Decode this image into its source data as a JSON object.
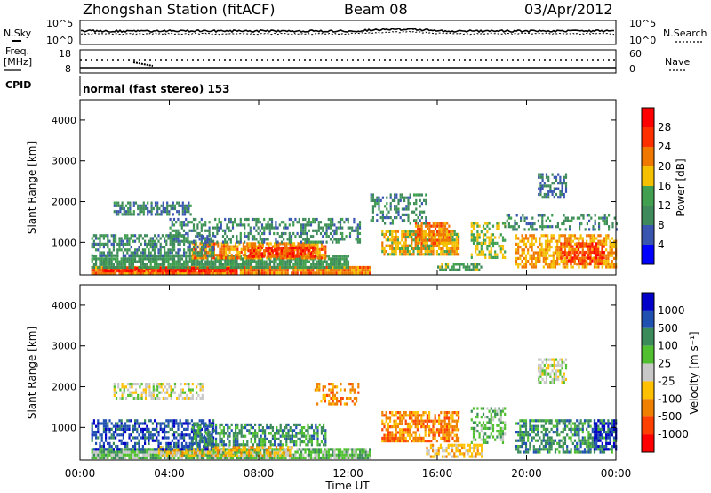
{
  "header": {
    "title": "Zhongshan Station (fitACF)",
    "beam": "Beam 08",
    "date": "03/Apr/2012"
  },
  "noise_panel": {
    "left_label": "N.Sky",
    "left_ticks": [
      "10^5",
      "10^0"
    ],
    "right_ticks": [
      "10^5",
      "10^0"
    ],
    "right_label": "N.Search"
  },
  "freq_panel": {
    "left_label_1": "Freq.",
    "left_label_2": "[MHz]",
    "left_ticks": [
      "18",
      "8"
    ],
    "right_ticks": [
      "60",
      "0"
    ],
    "right_label": "Nave"
  },
  "cpid_panel": {
    "label": "CPID",
    "value": "normal (fast stereo) 153"
  },
  "colors": {
    "power_scale": [
      "#0000ff",
      "#3a55b0",
      "#3e8a5a",
      "#40a050",
      "#f5c000",
      "#f07800",
      "#ff3000",
      "#ff0000"
    ],
    "velocity_scale": [
      "#0000c8",
      "#2050b0",
      "#3a8a5a",
      "#50c030",
      "#c8c8c8",
      "#ffc000",
      "#f08000",
      "#ff4000",
      "#ff0000"
    ]
  },
  "chart_data": [
    {
      "type": "heatmap",
      "name": "power",
      "ylabel": "Slant Range [km]",
      "yticks": [
        "1000",
        "2000",
        "3000",
        "4000"
      ],
      "ylim": [
        200,
        4500
      ],
      "xlim": [
        0,
        24
      ],
      "colorbar_label": "Power [dB]",
      "colorbar_ticks": [
        "4",
        "8",
        "12",
        "16",
        "20",
        "24",
        "28"
      ],
      "colorbar_range": [
        0,
        32
      ],
      "grid": false,
      "blobs": [
        {
          "t0": 0.5,
          "t1": 13.0,
          "r0": 280,
          "r1": 420,
          "value": 22,
          "density": 0.95
        },
        {
          "t0": 1.0,
          "t1": 7.0,
          "r0": 300,
          "r1": 400,
          "value": 28,
          "density": 0.9
        },
        {
          "t0": 0.5,
          "t1": 12.0,
          "r0": 400,
          "r1": 700,
          "value": 12,
          "density": 0.85
        },
        {
          "t0": 5.0,
          "t1": 11.0,
          "r0": 650,
          "r1": 1000,
          "value": 21,
          "density": 0.8
        },
        {
          "t0": 7.5,
          "t1": 10.5,
          "r0": 650,
          "r1": 900,
          "value": 26,
          "density": 0.75
        },
        {
          "t0": 0.5,
          "t1": 6.0,
          "r0": 700,
          "r1": 1200,
          "value": 10,
          "density": 0.6
        },
        {
          "t0": 1.5,
          "t1": 5.0,
          "r0": 1700,
          "r1": 2000,
          "value": 9,
          "density": 0.6
        },
        {
          "t0": 4.0,
          "t1": 12.5,
          "r0": 1000,
          "r1": 1600,
          "value": 10,
          "density": 0.45
        },
        {
          "t0": 13.5,
          "t1": 17.0,
          "r0": 700,
          "r1": 1300,
          "value": 18,
          "density": 0.8
        },
        {
          "t0": 15.0,
          "t1": 16.5,
          "r0": 1000,
          "r1": 1500,
          "value": 22,
          "density": 0.7
        },
        {
          "t0": 13.0,
          "t1": 15.5,
          "r0": 1500,
          "r1": 2200,
          "value": 10,
          "density": 0.4
        },
        {
          "t0": 16.0,
          "t1": 18.0,
          "r0": 300,
          "r1": 500,
          "value": 13,
          "density": 0.7
        },
        {
          "t0": 17.5,
          "t1": 19.0,
          "r0": 600,
          "r1": 1500,
          "value": 16,
          "density": 0.55
        },
        {
          "t0": 19.5,
          "t1": 24.0,
          "r0": 400,
          "r1": 1200,
          "value": 20,
          "density": 0.65
        },
        {
          "t0": 21.5,
          "t1": 23.5,
          "r0": 500,
          "r1": 1000,
          "value": 26,
          "density": 0.6
        },
        {
          "t0": 20.5,
          "t1": 21.8,
          "r0": 2100,
          "r1": 2700,
          "value": 8,
          "density": 0.6
        },
        {
          "t0": 19.0,
          "t1": 24.0,
          "r0": 1300,
          "r1": 1700,
          "value": 10,
          "density": 0.35
        }
      ]
    },
    {
      "type": "heatmap",
      "name": "velocity",
      "ylabel": "Slant Range [km]",
      "yticks": [
        "1000",
        "2000",
        "3000",
        "4000"
      ],
      "ylim": [
        200,
        4500
      ],
      "xlim": [
        0,
        24
      ],
      "xticks": [
        "00:00",
        "04:00",
        "08:00",
        "12:00",
        "16:00",
        "20:00",
        "00:00"
      ],
      "xlabel": "Time UT",
      "colorbar_label": "Velocity [m s⁻¹]",
      "colorbar_ticks": [
        "1000",
        "500",
        "100",
        "25",
        "-25",
        "-100",
        "-500",
        "-1000"
      ],
      "grid": false,
      "blobs": [
        {
          "t0": 0.5,
          "t1": 13.0,
          "r0": 280,
          "r1": 500,
          "value": 3,
          "density": 0.9
        },
        {
          "t0": 3.5,
          "t1": 9.5,
          "r0": 300,
          "r1": 550,
          "value": 5,
          "density": 0.6
        },
        {
          "t0": 0.5,
          "t1": 6.0,
          "r0": 500,
          "r1": 1200,
          "value": 1,
          "density": 0.55
        },
        {
          "t0": 5.0,
          "t1": 11.0,
          "r0": 600,
          "r1": 1100,
          "value": 2,
          "density": 0.6
        },
        {
          "t0": 1.5,
          "t1": 5.5,
          "r0": 1700,
          "r1": 2100,
          "value": 4,
          "density": 0.55
        },
        {
          "t0": 13.5,
          "t1": 17.0,
          "r0": 700,
          "r1": 1400,
          "value": 6,
          "density": 0.7
        },
        {
          "t0": 10.5,
          "t1": 12.5,
          "r0": 1600,
          "r1": 2100,
          "value": 6,
          "density": 0.4
        },
        {
          "t0": 15.5,
          "t1": 18.0,
          "r0": 300,
          "r1": 600,
          "value": 5,
          "density": 0.6
        },
        {
          "t0": 17.5,
          "t1": 19.0,
          "r0": 600,
          "r1": 1500,
          "value": 3,
          "density": 0.5
        },
        {
          "t0": 19.5,
          "t1": 24.0,
          "r0": 400,
          "r1": 1200,
          "value": 2,
          "density": 0.6
        },
        {
          "t0": 20.5,
          "t1": 21.8,
          "r0": 2100,
          "r1": 2700,
          "value": 4,
          "density": 0.6
        },
        {
          "t0": 23.0,
          "t1": 24.0,
          "r0": 500,
          "r1": 1200,
          "value": 0,
          "density": 0.5
        }
      ]
    }
  ]
}
